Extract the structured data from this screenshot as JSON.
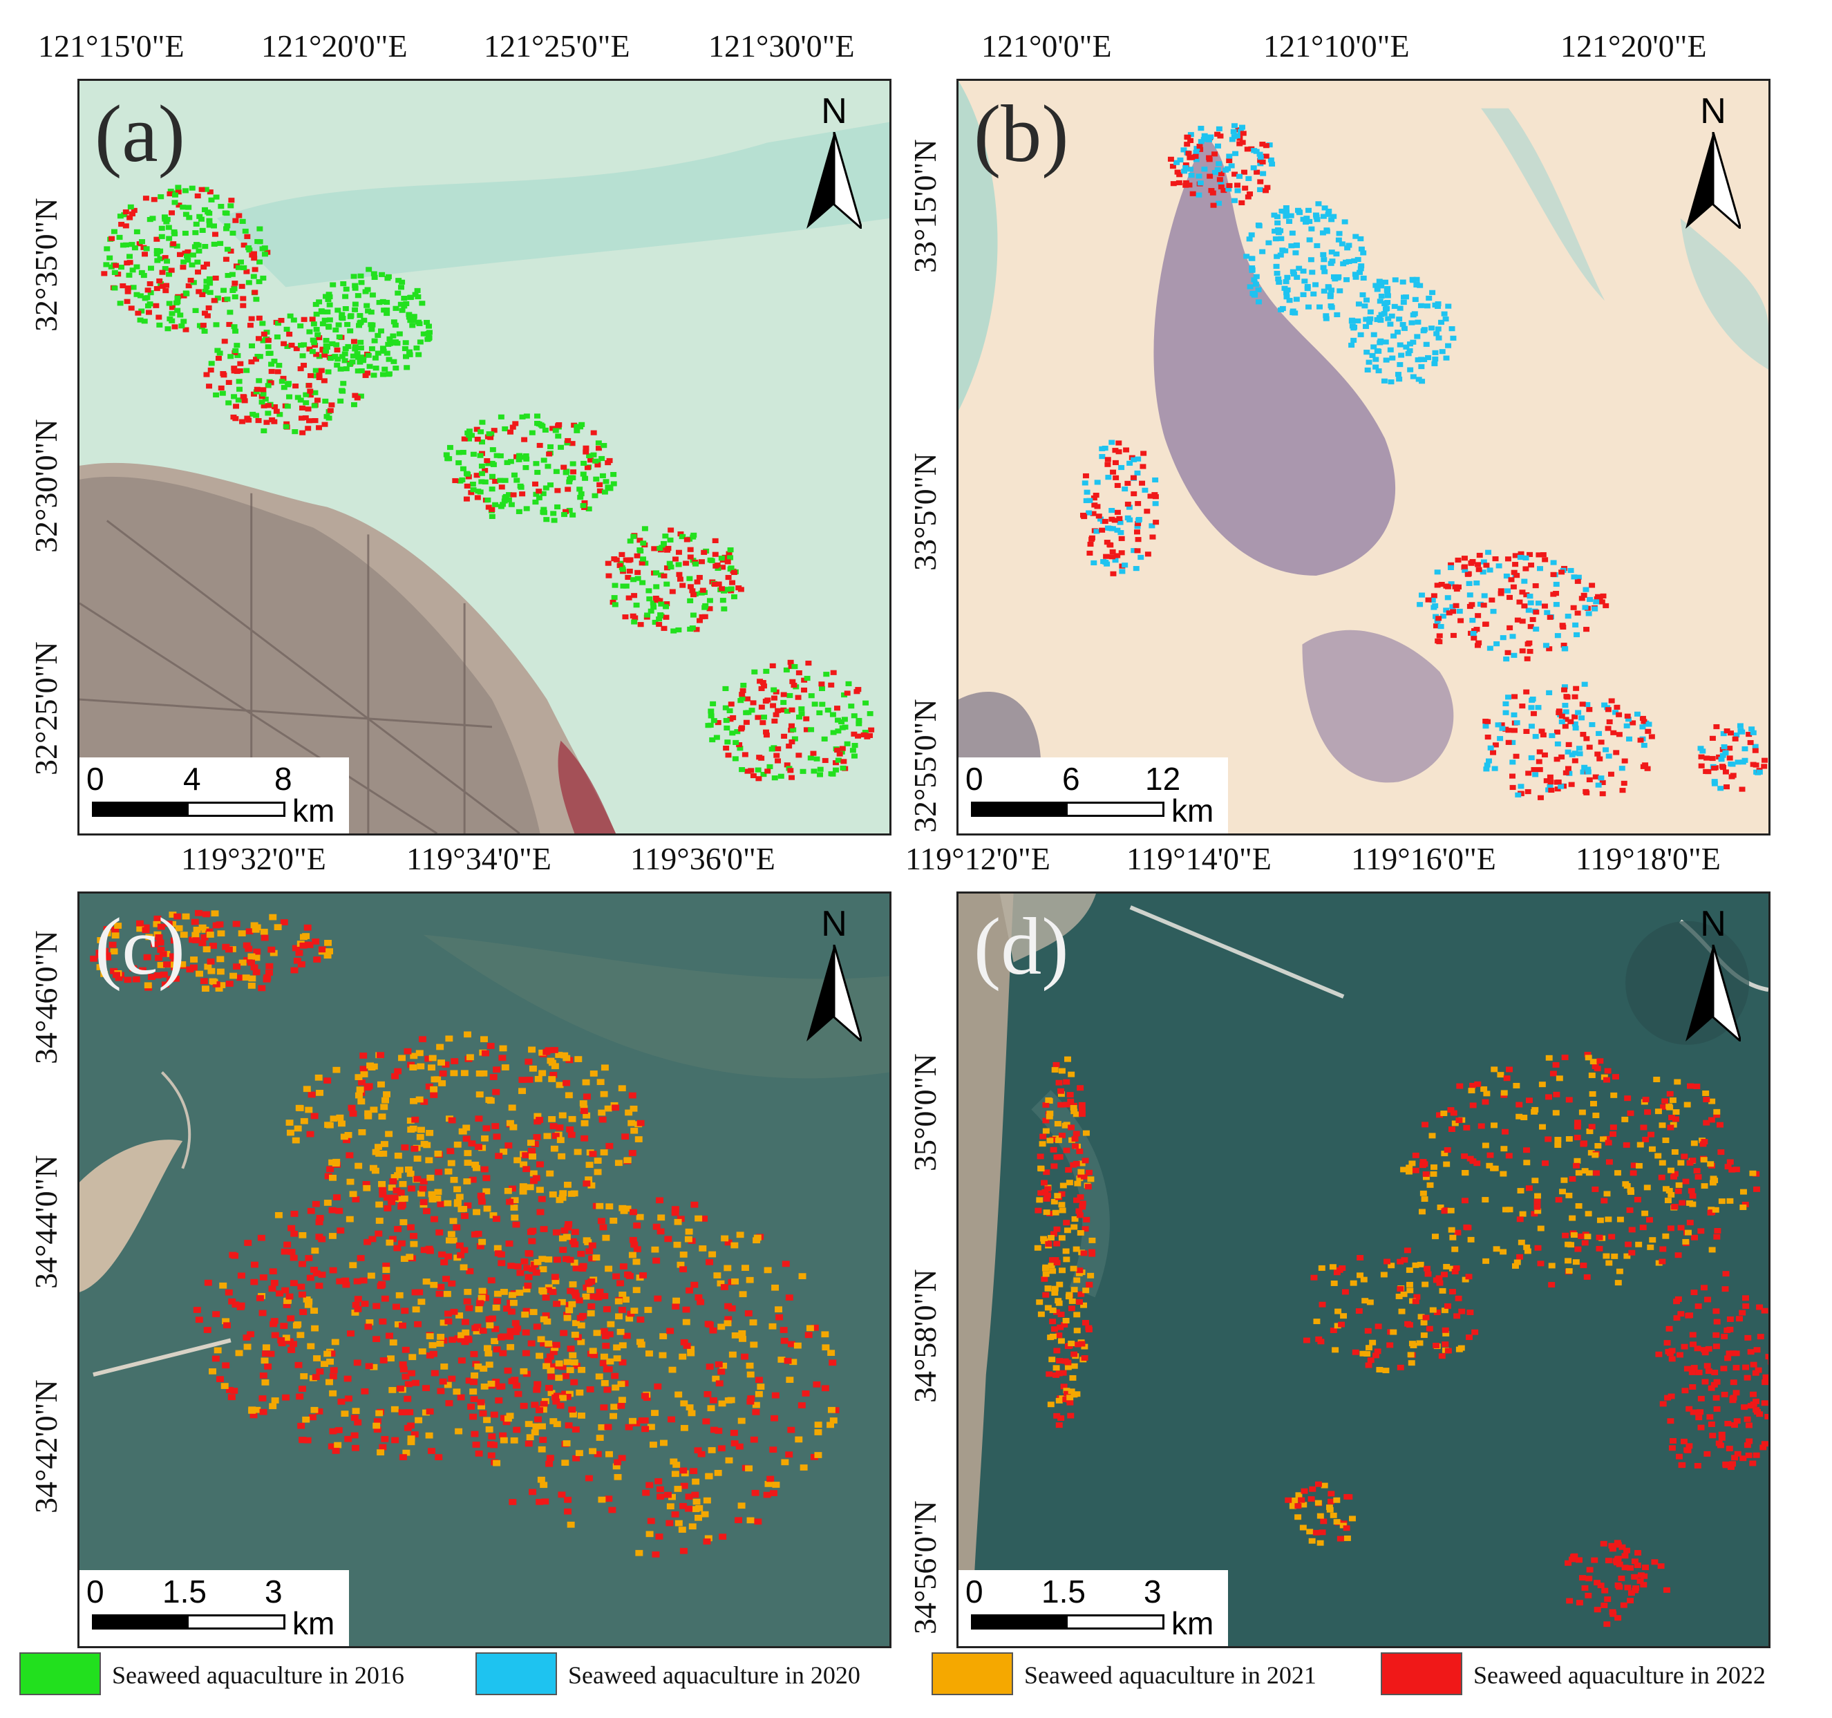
{
  "panels": [
    {
      "id": "a",
      "label": "(a)",
      "lon_ticks": [
        "121°15'0\"E",
        "121°20'0\"E",
        "121°25'0\"E",
        "121°30'0\"E"
      ],
      "lat_ticks": [
        "32°35'0\"N",
        "32°30'0\"N",
        "32°25'0\"N"
      ],
      "scale": {
        "values": [
          "0",
          "4",
          "8"
        ],
        "unit": "km"
      }
    },
    {
      "id": "b",
      "label": "(b)",
      "lon_ticks": [
        "121°0'0\"E",
        "121°10'0\"E",
        "121°20'0\"E"
      ],
      "lat_ticks": [
        "33°15'0\"N",
        "33°5'0\"N",
        "32°55'0\"N"
      ],
      "scale": {
        "values": [
          "0",
          "6",
          "12"
        ],
        "unit": "km"
      }
    },
    {
      "id": "c",
      "label": "(c)",
      "lon_ticks": [
        "119°32'0\"E",
        "119°34'0\"E",
        "119°36'0\"E"
      ],
      "lat_ticks": [
        "34°46'0\"N",
        "34°44'0\"N",
        "34°42'0\"N"
      ],
      "scale": {
        "values": [
          "0",
          "1.5",
          "3"
        ],
        "unit": "km"
      }
    },
    {
      "id": "d",
      "label": "(d)",
      "lon_ticks": [
        "119°12'0\"E",
        "119°14'0\"E",
        "119°16'0\"E",
        "119°18'0\"E"
      ],
      "lat_ticks": [
        "35°0'0\"N",
        "34°58'0\"N",
        "34°56'0\"N"
      ],
      "scale": {
        "values": [
          "0",
          "1.5",
          "3"
        ],
        "unit": "km"
      }
    }
  ],
  "north_letter": "N",
  "legend": [
    {
      "label": "Seaweed aquaculture in 2016",
      "color": "#22e01e"
    },
    {
      "label": "Seaweed aquaculture in 2020",
      "color": "#1ec3f0"
    },
    {
      "label": "Seaweed aquaculture in 2021",
      "color": "#f5a800"
    },
    {
      "label": "Seaweed aquaculture in 2022",
      "color": "#f01818"
    }
  ]
}
